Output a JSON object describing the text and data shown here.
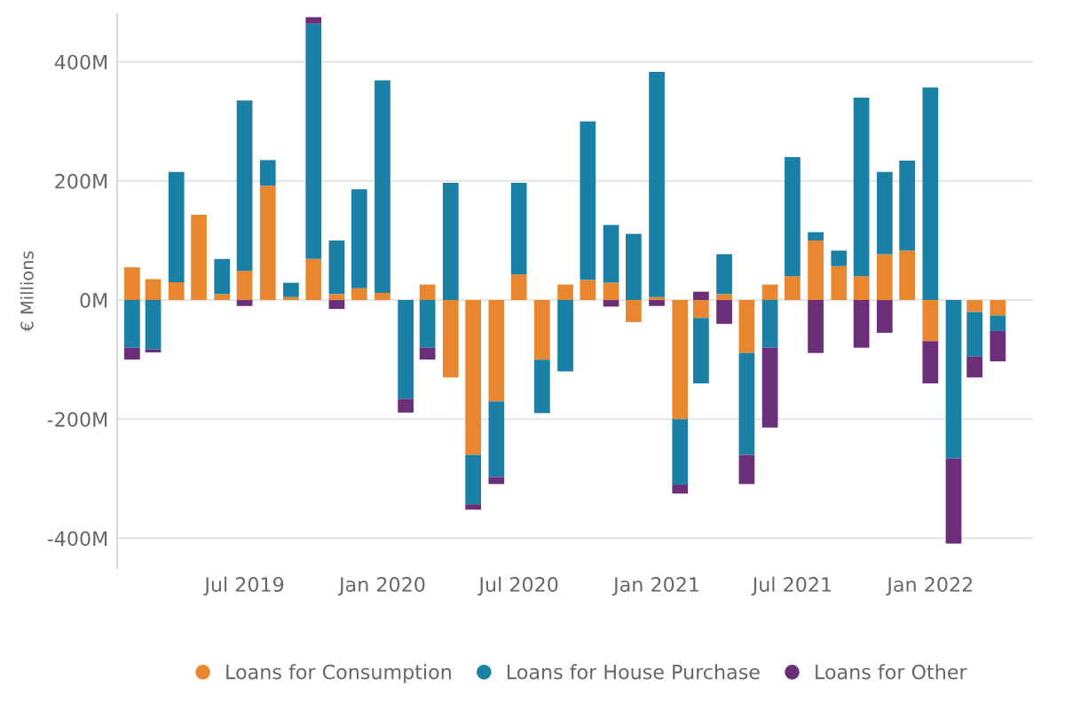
{
  "chart_data": {
    "type": "bar",
    "stacked": true,
    "ylabel": "€ Millions",
    "x": [
      "2019-02",
      "2019-03",
      "2019-04",
      "2019-05",
      "2019-06",
      "2019-07",
      "2019-08",
      "2019-09",
      "2019-10",
      "2019-11",
      "2019-12",
      "2020-01",
      "2020-02",
      "2020-03",
      "2020-04",
      "2020-05",
      "2020-06",
      "2020-07",
      "2020-08",
      "2020-09",
      "2020-10",
      "2020-11",
      "2020-12",
      "2021-01",
      "2021-02",
      "2021-03",
      "2021-04",
      "2021-05",
      "2021-06",
      "2021-07",
      "2021-08",
      "2021-09",
      "2021-10",
      "2021-11",
      "2021-12",
      "2022-01",
      "2022-02",
      "2022-03",
      "2022-04"
    ],
    "series": [
      {
        "name": "Loans for Consumption",
        "color": "#e8872f",
        "values": [
          55,
          35,
          30,
          143,
          10,
          49,
          192,
          5,
          69,
          10,
          20,
          12,
          0,
          26,
          -130,
          -260,
          -170,
          43,
          -100,
          26,
          34,
          29,
          -37,
          5,
          -200,
          -30,
          10,
          -89,
          26,
          40,
          100,
          57,
          40,
          77,
          83,
          -69,
          0,
          -20,
          -26
        ]
      },
      {
        "name": "Loans for House Purchase",
        "color": "#1b80a6",
        "values": [
          -80,
          -83,
          185,
          0,
          59,
          286,
          43,
          24,
          395,
          90,
          166,
          357,
          -166,
          -80,
          197,
          -83,
          -127,
          154,
          -90,
          -120,
          266,
          97,
          111,
          378,
          -110,
          -110,
          67,
          -171,
          -80,
          200,
          14,
          26,
          300,
          138,
          151,
          357,
          -266,
          -75,
          -26
        ]
      },
      {
        "name": "Loans for Other",
        "color": "#6a2f78",
        "values": [
          -20,
          -5,
          0,
          0,
          0,
          -10,
          0,
          0,
          11,
          -15,
          0,
          0,
          -23,
          -20,
          0,
          -9,
          -12,
          0,
          0,
          0,
          0,
          -11,
          0,
          -10,
          -15,
          14,
          -40,
          -49,
          -134,
          0,
          -89,
          0,
          -80,
          -55,
          0,
          -71,
          -143,
          -35,
          -51
        ]
      }
    ],
    "xlim": [
      "2019-01-12",
      "2022-05-18"
    ],
    "xticks": [
      {
        "value": "2019-07",
        "label": "Jul 2019"
      },
      {
        "value": "2020-01",
        "label": "Jan 2020"
      },
      {
        "value": "2020-07",
        "label": "Jul 2020"
      },
      {
        "value": "2021-01",
        "label": "Jan 2021"
      },
      {
        "value": "2021-07",
        "label": "Jul 2021"
      },
      {
        "value": "2022-01",
        "label": "Jan 2022"
      }
    ],
    "ylim": [
      -450,
      480
    ],
    "yticks": [
      {
        "value": -400,
        "label": "-400M"
      },
      {
        "value": -200,
        "label": "-200M"
      },
      {
        "value": 0,
        "label": "0M"
      },
      {
        "value": 200,
        "label": "200M"
      },
      {
        "value": 400,
        "label": "400M"
      }
    ],
    "grid": "y",
    "legend": "bottom"
  }
}
